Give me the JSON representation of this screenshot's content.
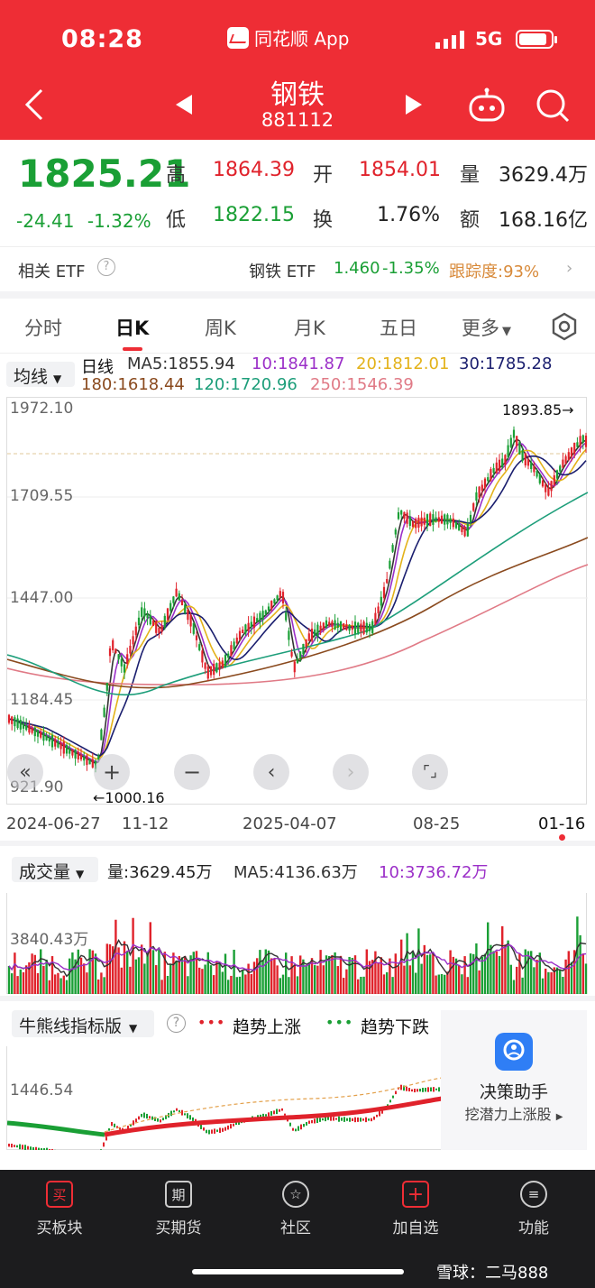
{
  "status": {
    "time": "08:28",
    "app": "同花顺 App",
    "network": "5G"
  },
  "header": {
    "name": "钢铁",
    "code": "881112"
  },
  "quote": {
    "price": "1825.21",
    "change": "-24.41",
    "change_pct": "-1.32%",
    "high_label": "高",
    "high": "1864.39",
    "open_label": "开",
    "open": "1854.01",
    "vol_label": "量",
    "vol": "3629.4万",
    "low_label": "低",
    "low": "1822.15",
    "turnover_label": "换",
    "turnover": "1.76%",
    "amount_label": "额",
    "amount": "168.16亿"
  },
  "etf": {
    "label": "相关 ETF",
    "name": "钢铁 ETF",
    "price": "1.460",
    "pct": "-1.35%",
    "track": "跟踪度:93%"
  },
  "tabs": [
    "分时",
    "日K",
    "周K",
    "月K",
    "五日",
    "更多"
  ],
  "ma_legend": {
    "selector": "均线",
    "type": "日线",
    "ma5": "MA5:1855.94",
    "ma10": "10:1841.87",
    "ma20": "20:1812.01",
    "ma30": "30:1785.28",
    "ma180": "180:1618.44",
    "ma120": "120:1720.96",
    "ma250": "250:1546.39"
  },
  "colors": {
    "up": "#e0222b",
    "down": "#1a9f35",
    "ma5": "#333333",
    "ma10": "#9b2fc8",
    "ma20": "#e3b21a",
    "ma30": "#1a1e6e",
    "ma180": "#8a4a1e",
    "ma120": "#1d9e7a",
    "ma250": "#e07a86"
  },
  "kline": {
    "y_ticks": [
      "1972.10",
      "1709.55",
      "1447.00",
      "1184.45",
      "921.90"
    ],
    "high_marker": "1893.85→",
    "low_marker": "←1000.16",
    "dates": [
      "2024-06-27",
      "11-12",
      "2025-04-07",
      "08-25",
      "01-16"
    ]
  },
  "volume": {
    "selector": "成交量",
    "vol": "量:3629.45万",
    "ma5": "MA5:4136.63万",
    "ma10": "10:3736.72万",
    "y_tick": "3840.43万"
  },
  "bullbear": {
    "selector": "牛熊线指标版",
    "up_label": "趋势上涨",
    "down_label": "趋势下跌",
    "y_tick": "1446.54",
    "assistant_title": "决策助手",
    "assistant_sub": "挖潜力上涨股"
  },
  "nav": [
    "买板块",
    "买期货",
    "社区",
    "加自选",
    "功能"
  ],
  "nav_icons": [
    "买",
    "期",
    "☆",
    "+",
    "≡"
  ],
  "watermark": "雪球：二马888"
}
